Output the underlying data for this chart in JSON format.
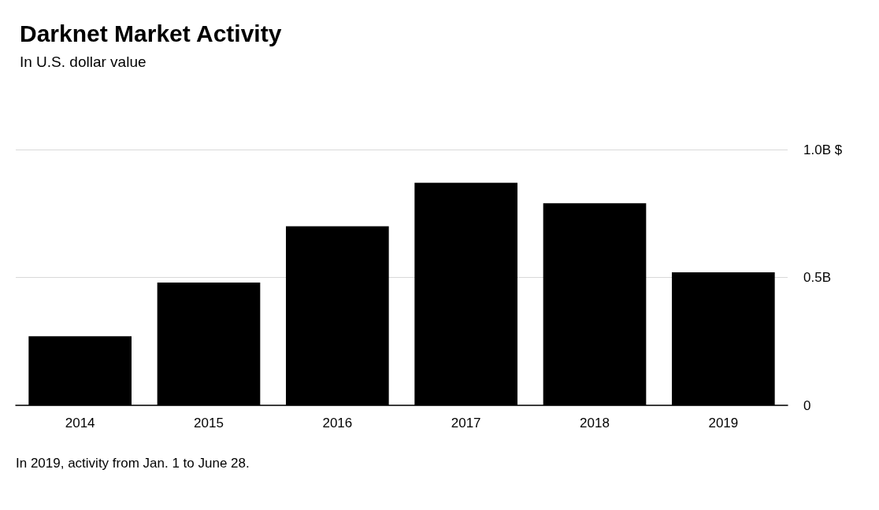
{
  "chart_data": {
    "type": "bar",
    "title": "Darknet Market Activity",
    "subtitle": "In U.S. dollar value",
    "categories": [
      "2014",
      "2015",
      "2016",
      "2017",
      "2018",
      "2019"
    ],
    "values": [
      0.27,
      0.48,
      0.7,
      0.87,
      0.79,
      0.52
    ],
    "color": "#000000",
    "ylim": [
      0,
      1.0
    ],
    "yticks": [
      0,
      {
        "value": 0.5,
        "label": "0.5B"
      },
      {
        "value": 1.0,
        "label": "1.0B $"
      }
    ],
    "grid": "y",
    "annotations": [
      "In 2019, activity from Jan. 1 to June 28."
    ]
  }
}
